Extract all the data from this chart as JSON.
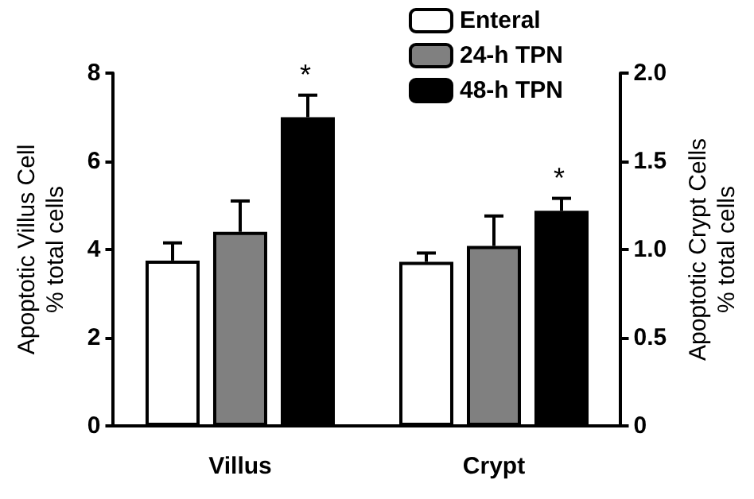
{
  "chart_data": {
    "type": "bar",
    "categories": [
      "Villus",
      "Crypt"
    ],
    "ylabel": "Apoptotic Villus Cell\n% total cells",
    "y2label": "Apoptotic Crypt Cells\n% total cells",
    "ylim": [
      0,
      8
    ],
    "yticks": [
      0,
      2,
      4,
      6,
      8
    ],
    "y2lim": [
      0,
      2.0
    ],
    "y2ticks": [
      {
        "value": 0,
        "label": "0"
      },
      0.5,
      {
        "value": 1.0,
        "label": "1.0"
      },
      1.5,
      {
        "value": 2.0,
        "label": "2.0"
      }
    ],
    "series": [
      {
        "name": "Enteral",
        "color": "#ffffff",
        "values": [
          3.75,
          null
        ],
        "errors": [
          0.4,
          null
        ]
      },
      {
        "name": "24-h TPN",
        "color": "#808080",
        "values": [
          4.4,
          null
        ],
        "errors": [
          0.7,
          null
        ]
      },
      {
        "name": "48-h TPN",
        "color": "#000000",
        "values": [
          7.0,
          null
        ],
        "errors": [
          0.5,
          null
        ]
      },
      {
        "color": "#ffffff",
        "axis": "y2",
        "values": [
          null,
          0.93
        ],
        "errors": [
          null,
          0.05
        ]
      },
      {
        "color": "#808080",
        "axis": "y2",
        "values": [
          null,
          1.02
        ],
        "errors": [
          null,
          0.17
        ]
      },
      {
        "color": "#000000",
        "axis": "y2",
        "values": [
          null,
          1.22
        ],
        "errors": [
          null,
          0.07
        ]
      }
    ],
    "annotations": [
      "*",
      "*"
    ],
    "legend": "top right",
    "grid": false
  }
}
